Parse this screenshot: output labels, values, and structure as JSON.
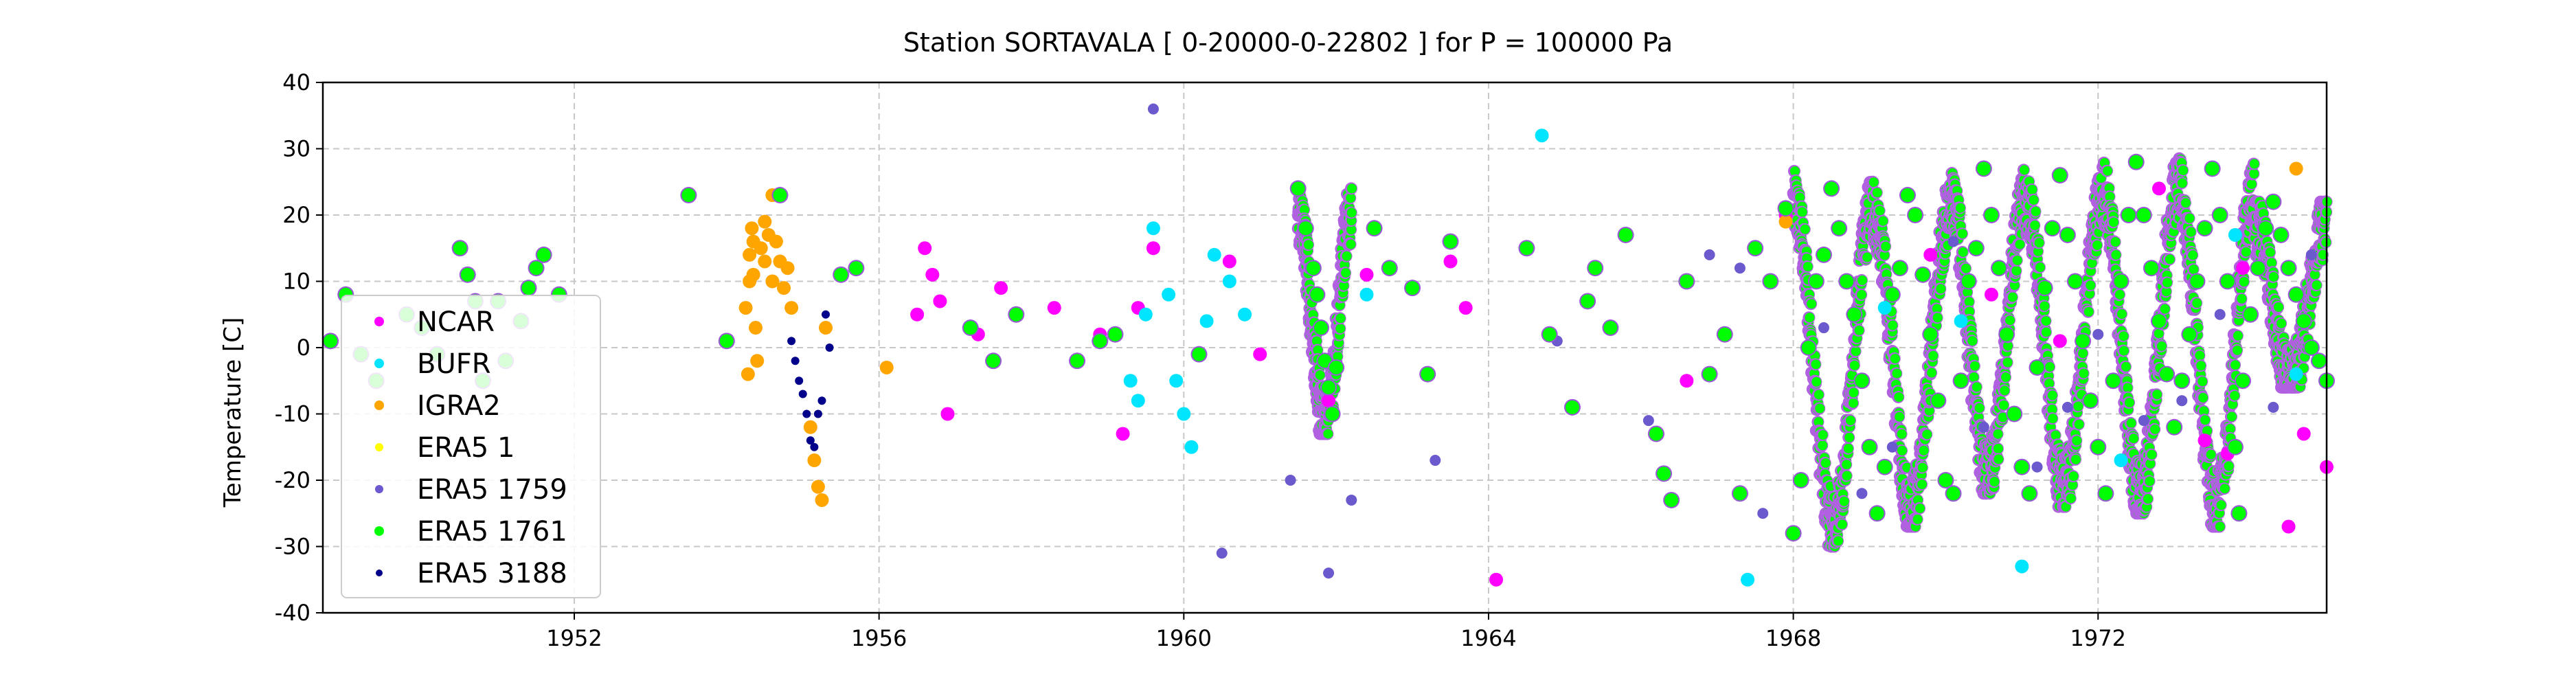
{
  "chart_data": {
    "type": "scatter",
    "title": "Station  SORTAVALA [ 0-20000-0-22802 ]  for P = 100000 Pa",
    "xlabel": "",
    "ylabel": "Temperature [C]",
    "xlim": [
      1948.7,
      1975.0
    ],
    "ylim": [
      -40,
      40
    ],
    "xticks": [
      1952,
      1956,
      1960,
      1964,
      1968,
      1972
    ],
    "yticks": [
      -40,
      -30,
      -20,
      -10,
      0,
      10,
      20,
      30,
      40
    ],
    "grid": true,
    "legend_position": "lower-left",
    "series": [
      {
        "name": "NCAR",
        "color": "#ff00ff",
        "marker_size": 5,
        "points": [
          [
            1956.6,
            15
          ],
          [
            1956.7,
            11
          ],
          [
            1956.8,
            7
          ],
          [
            1956.9,
            -10
          ],
          [
            1956.5,
            5
          ],
          [
            1957.3,
            2
          ],
          [
            1957.6,
            9
          ],
          [
            1958.3,
            6
          ],
          [
            1958.9,
            2
          ],
          [
            1959.2,
            -13
          ],
          [
            1959.4,
            6
          ],
          [
            1959.6,
            15
          ],
          [
            1960.6,
            13
          ],
          [
            1961.0,
            -1
          ],
          [
            1961.9,
            -8
          ],
          [
            1962.4,
            11
          ],
          [
            1963.5,
            13
          ],
          [
            1963.7,
            6
          ],
          [
            1964.1,
            -35
          ],
          [
            1966.6,
            -5
          ],
          [
            1967.9,
            20
          ],
          [
            1968.7,
            10
          ],
          [
            1969.8,
            14
          ],
          [
            1970.6,
            8
          ],
          [
            1971.5,
            1
          ],
          [
            1972.8,
            24
          ],
          [
            1973.4,
            -14
          ],
          [
            1973.7,
            -16
          ],
          [
            1973.9,
            12
          ],
          [
            1974.5,
            -27
          ],
          [
            1974.7,
            -13
          ],
          [
            1975.0,
            -18
          ]
        ]
      },
      {
        "name": "BUFR",
        "color": "#00e5ff",
        "marker_size": 5,
        "points": [
          [
            1959.3,
            -5
          ],
          [
            1959.4,
            -8
          ],
          [
            1959.5,
            5
          ],
          [
            1959.6,
            18
          ],
          [
            1959.8,
            8
          ],
          [
            1959.9,
            -5
          ],
          [
            1960.0,
            -10
          ],
          [
            1960.1,
            -15
          ],
          [
            1960.3,
            4
          ],
          [
            1960.4,
            14
          ],
          [
            1960.6,
            10
          ],
          [
            1960.8,
            5
          ],
          [
            1962.4,
            8
          ],
          [
            1964.7,
            32
          ],
          [
            1967.4,
            -35
          ],
          [
            1969.2,
            6
          ],
          [
            1970.2,
            4
          ],
          [
            1971.0,
            -33
          ],
          [
            1972.3,
            -17
          ],
          [
            1973.8,
            17
          ],
          [
            1974.6,
            -4
          ]
        ]
      },
      {
        "name": "IGRA2",
        "color": "#ffa500",
        "marker_size": 5,
        "points": [
          [
            1954.25,
            6
          ],
          [
            1954.3,
            14
          ],
          [
            1954.33,
            18
          ],
          [
            1954.35,
            11
          ],
          [
            1954.38,
            3
          ],
          [
            1954.4,
            -2
          ],
          [
            1954.45,
            15
          ],
          [
            1954.5,
            13
          ],
          [
            1954.55,
            17
          ],
          [
            1954.6,
            10
          ],
          [
            1954.65,
            16
          ],
          [
            1954.7,
            13
          ],
          [
            1954.75,
            9
          ],
          [
            1954.8,
            12
          ],
          [
            1954.85,
            6
          ],
          [
            1954.3,
            10
          ],
          [
            1954.28,
            -4
          ],
          [
            1954.35,
            16
          ],
          [
            1954.5,
            19
          ],
          [
            1954.6,
            23
          ],
          [
            1955.1,
            -12
          ],
          [
            1955.15,
            -17
          ],
          [
            1955.2,
            -21
          ],
          [
            1955.25,
            -23
          ],
          [
            1955.3,
            3
          ],
          [
            1956.1,
            -3
          ],
          [
            1967.9,
            19
          ],
          [
            1974.6,
            27
          ]
        ]
      },
      {
        "name": "ERA5 1",
        "color": "#ffff00",
        "marker_size": 4,
        "points": []
      },
      {
        "name": "ERA5 1759",
        "color": "#6a5acd",
        "marker_size": 4,
        "points": [
          [
            1959.6,
            36
          ],
          [
            1960.5,
            -31
          ],
          [
            1961.4,
            -20
          ],
          [
            1961.9,
            -34
          ],
          [
            1962.2,
            -23
          ],
          [
            1963.3,
            -17
          ],
          [
            1964.9,
            1
          ],
          [
            1966.1,
            -11
          ],
          [
            1966.9,
            14
          ],
          [
            1967.3,
            12
          ],
          [
            1967.6,
            -25
          ],
          [
            1968.4,
            3
          ],
          [
            1968.9,
            -22
          ],
          [
            1969.3,
            -15
          ],
          [
            1970.1,
            16
          ],
          [
            1970.5,
            -12
          ],
          [
            1971.2,
            -18
          ],
          [
            1971.6,
            -9
          ],
          [
            1972.0,
            2
          ],
          [
            1972.6,
            -11
          ],
          [
            1973.1,
            -8
          ],
          [
            1973.6,
            5
          ],
          [
            1974.3,
            -9
          ],
          [
            1974.8,
            14
          ]
        ]
      },
      {
        "name": "ERA5 1761",
        "color": "#00ff00",
        "marker_size": 5,
        "points": [
          [
            1948.8,
            1
          ],
          [
            1949.0,
            8
          ],
          [
            1949.2,
            -1
          ],
          [
            1949.4,
            -5
          ],
          [
            1949.8,
            5
          ],
          [
            1950.0,
            3
          ],
          [
            1950.2,
            -1
          ],
          [
            1950.5,
            15
          ],
          [
            1950.6,
            11
          ],
          [
            1950.7,
            7
          ],
          [
            1950.8,
            -5
          ],
          [
            1951.0,
            7
          ],
          [
            1951.1,
            -2
          ],
          [
            1951.3,
            4
          ],
          [
            1951.4,
            9
          ],
          [
            1951.5,
            12
          ],
          [
            1951.6,
            14
          ],
          [
            1951.8,
            8
          ],
          [
            1953.5,
            23
          ],
          [
            1954.0,
            1
          ],
          [
            1954.7,
            23
          ],
          [
            1955.5,
            11
          ],
          [
            1955.7,
            12
          ],
          [
            1957.2,
            3
          ],
          [
            1957.5,
            -2
          ],
          [
            1957.8,
            5
          ],
          [
            1958.6,
            -2
          ],
          [
            1958.9,
            1
          ],
          [
            1959.1,
            2
          ],
          [
            1960.2,
            -1
          ],
          [
            1961.5,
            24
          ],
          [
            1961.6,
            18
          ],
          [
            1961.7,
            12
          ],
          [
            1961.75,
            8
          ],
          [
            1961.8,
            3
          ],
          [
            1961.85,
            -2
          ],
          [
            1961.9,
            -6
          ],
          [
            1961.95,
            -10
          ],
          [
            1962.0,
            -3
          ],
          [
            1962.5,
            18
          ],
          [
            1962.7,
            12
          ],
          [
            1963.0,
            9
          ],
          [
            1963.2,
            -4
          ],
          [
            1963.5,
            16
          ],
          [
            1964.5,
            15
          ],
          [
            1964.8,
            2
          ],
          [
            1965.1,
            -9
          ],
          [
            1965.3,
            7
          ],
          [
            1965.4,
            12
          ],
          [
            1965.6,
            3
          ],
          [
            1965.8,
            17
          ],
          [
            1966.2,
            -13
          ],
          [
            1966.3,
            -19
          ],
          [
            1966.4,
            -23
          ],
          [
            1966.6,
            10
          ],
          [
            1966.9,
            -4
          ],
          [
            1967.1,
            2
          ],
          [
            1967.3,
            -22
          ],
          [
            1967.5,
            15
          ],
          [
            1967.7,
            10
          ],
          [
            1967.9,
            21
          ],
          [
            1968.0,
            -28
          ],
          [
            1968.1,
            -20
          ],
          [
            1968.2,
            0
          ],
          [
            1968.3,
            10
          ],
          [
            1968.4,
            14
          ],
          [
            1968.5,
            24
          ],
          [
            1968.6,
            18
          ],
          [
            1968.7,
            10
          ],
          [
            1968.8,
            5
          ],
          [
            1968.9,
            -5
          ],
          [
            1969.0,
            -15
          ],
          [
            1969.1,
            -25
          ],
          [
            1969.2,
            -18
          ],
          [
            1969.3,
            8
          ],
          [
            1969.4,
            12
          ],
          [
            1969.5,
            23
          ],
          [
            1969.6,
            20
          ],
          [
            1969.7,
            11
          ],
          [
            1969.8,
            2
          ],
          [
            1969.9,
            -8
          ],
          [
            1970.0,
            -20
          ],
          [
            1970.1,
            -22
          ],
          [
            1970.2,
            -5
          ],
          [
            1970.3,
            10
          ],
          [
            1970.4,
            15
          ],
          [
            1970.5,
            27
          ],
          [
            1970.6,
            20
          ],
          [
            1970.7,
            12
          ],
          [
            1970.8,
            2
          ],
          [
            1970.9,
            -10
          ],
          [
            1971.0,
            -18
          ],
          [
            1971.1,
            -22
          ],
          [
            1971.2,
            -3
          ],
          [
            1971.3,
            9
          ],
          [
            1971.4,
            18
          ],
          [
            1971.5,
            26
          ],
          [
            1971.6,
            17
          ],
          [
            1971.7,
            10
          ],
          [
            1971.8,
            1
          ],
          [
            1971.9,
            -8
          ],
          [
            1972.0,
            -15
          ],
          [
            1972.1,
            -22
          ],
          [
            1972.2,
            -5
          ],
          [
            1972.3,
            10
          ],
          [
            1972.4,
            20
          ],
          [
            1972.5,
            28
          ],
          [
            1972.6,
            20
          ],
          [
            1972.7,
            12
          ],
          [
            1972.8,
            4
          ],
          [
            1972.9,
            -4
          ],
          [
            1973.0,
            -12
          ],
          [
            1973.1,
            -5
          ],
          [
            1973.2,
            2
          ],
          [
            1973.3,
            10
          ],
          [
            1973.4,
            18
          ],
          [
            1973.5,
            27
          ],
          [
            1973.6,
            20
          ],
          [
            1973.7,
            10
          ],
          [
            1973.8,
            -15
          ],
          [
            1973.85,
            -25
          ],
          [
            1973.9,
            -5
          ],
          [
            1974.0,
            5
          ],
          [
            1974.1,
            12
          ],
          [
            1974.2,
            18
          ],
          [
            1974.3,
            22
          ],
          [
            1974.4,
            17
          ],
          [
            1974.5,
            12
          ],
          [
            1974.6,
            8
          ],
          [
            1974.7,
            4
          ],
          [
            1974.8,
            0
          ],
          [
            1974.9,
            -2
          ],
          [
            1975.0,
            -5
          ]
        ]
      },
      {
        "name": "ERA5 3188",
        "color": "#00008b",
        "marker_size": 3,
        "points": [
          [
            1954.85,
            1
          ],
          [
            1954.9,
            -2
          ],
          [
            1954.95,
            -5
          ],
          [
            1955.0,
            -7
          ],
          [
            1955.05,
            -10
          ],
          [
            1955.1,
            -14
          ],
          [
            1955.15,
            -15
          ],
          [
            1955.2,
            -10
          ],
          [
            1955.25,
            -8
          ],
          [
            1955.3,
            5
          ],
          [
            1955.35,
            0
          ]
        ]
      }
    ],
    "dense_bands": [
      {
        "x0": 1968.0,
        "x1": 1969.05,
        "color": "#00ff00",
        "ymin": -30,
        "ymax": 27
      },
      {
        "x0": 1969.05,
        "x1": 1970.05,
        "color": "#00ff00",
        "ymin": -27,
        "ymax": 25
      },
      {
        "x0": 1970.05,
        "x1": 1971.05,
        "color": "#00ff00",
        "ymin": -22,
        "ymax": 28
      },
      {
        "x0": 1971.05,
        "x1": 1972.05,
        "color": "#00ff00",
        "ymin": -24,
        "ymax": 27
      },
      {
        "x0": 1972.05,
        "x1": 1973.05,
        "color": "#00ff00",
        "ymin": -25,
        "ymax": 29
      },
      {
        "x0": 1973.05,
        "x1": 1974.05,
        "color": "#00ff00",
        "ymin": -27,
        "ymax": 29
      },
      {
        "x0": 1974.05,
        "x1": 1975.0,
        "color": "#00ff00",
        "ymin": -6,
        "ymax": 22
      },
      {
        "x0": 1961.5,
        "x1": 1962.2,
        "color": "#00ff00",
        "ymin": -13,
        "ymax": 24
      }
    ]
  }
}
